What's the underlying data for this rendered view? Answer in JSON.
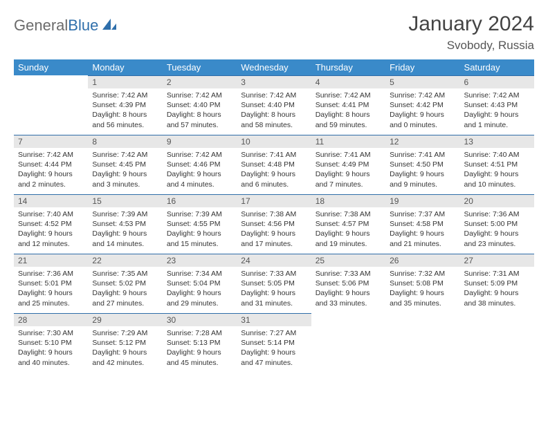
{
  "logo": {
    "word1": "General",
    "word2": "Blue"
  },
  "title": "January 2024",
  "location": "Svobody, Russia",
  "colors": {
    "header_bg": "#3a8ac9",
    "header_rule": "#2e6ca8",
    "daynum_bg": "#e7e7e7",
    "text": "#333333",
    "logo_gray": "#6b6b6b",
    "logo_blue": "#2f6fab"
  },
  "weekdays": [
    "Sunday",
    "Monday",
    "Tuesday",
    "Wednesday",
    "Thursday",
    "Friday",
    "Saturday"
  ],
  "start_offset": 1,
  "days": [
    {
      "n": 1,
      "sunrise": "7:42 AM",
      "sunset": "4:39 PM",
      "daylight": "8 hours and 56 minutes."
    },
    {
      "n": 2,
      "sunrise": "7:42 AM",
      "sunset": "4:40 PM",
      "daylight": "8 hours and 57 minutes."
    },
    {
      "n": 3,
      "sunrise": "7:42 AM",
      "sunset": "4:40 PM",
      "daylight": "8 hours and 58 minutes."
    },
    {
      "n": 4,
      "sunrise": "7:42 AM",
      "sunset": "4:41 PM",
      "daylight": "8 hours and 59 minutes."
    },
    {
      "n": 5,
      "sunrise": "7:42 AM",
      "sunset": "4:42 PM",
      "daylight": "9 hours and 0 minutes."
    },
    {
      "n": 6,
      "sunrise": "7:42 AM",
      "sunset": "4:43 PM",
      "daylight": "9 hours and 1 minute."
    },
    {
      "n": 7,
      "sunrise": "7:42 AM",
      "sunset": "4:44 PM",
      "daylight": "9 hours and 2 minutes."
    },
    {
      "n": 8,
      "sunrise": "7:42 AM",
      "sunset": "4:45 PM",
      "daylight": "9 hours and 3 minutes."
    },
    {
      "n": 9,
      "sunrise": "7:42 AM",
      "sunset": "4:46 PM",
      "daylight": "9 hours and 4 minutes."
    },
    {
      "n": 10,
      "sunrise": "7:41 AM",
      "sunset": "4:48 PM",
      "daylight": "9 hours and 6 minutes."
    },
    {
      "n": 11,
      "sunrise": "7:41 AM",
      "sunset": "4:49 PM",
      "daylight": "9 hours and 7 minutes."
    },
    {
      "n": 12,
      "sunrise": "7:41 AM",
      "sunset": "4:50 PM",
      "daylight": "9 hours and 9 minutes."
    },
    {
      "n": 13,
      "sunrise": "7:40 AM",
      "sunset": "4:51 PM",
      "daylight": "9 hours and 10 minutes."
    },
    {
      "n": 14,
      "sunrise": "7:40 AM",
      "sunset": "4:52 PM",
      "daylight": "9 hours and 12 minutes."
    },
    {
      "n": 15,
      "sunrise": "7:39 AM",
      "sunset": "4:53 PM",
      "daylight": "9 hours and 14 minutes."
    },
    {
      "n": 16,
      "sunrise": "7:39 AM",
      "sunset": "4:55 PM",
      "daylight": "9 hours and 15 minutes."
    },
    {
      "n": 17,
      "sunrise": "7:38 AM",
      "sunset": "4:56 PM",
      "daylight": "9 hours and 17 minutes."
    },
    {
      "n": 18,
      "sunrise": "7:38 AM",
      "sunset": "4:57 PM",
      "daylight": "9 hours and 19 minutes."
    },
    {
      "n": 19,
      "sunrise": "7:37 AM",
      "sunset": "4:58 PM",
      "daylight": "9 hours and 21 minutes."
    },
    {
      "n": 20,
      "sunrise": "7:36 AM",
      "sunset": "5:00 PM",
      "daylight": "9 hours and 23 minutes."
    },
    {
      "n": 21,
      "sunrise": "7:36 AM",
      "sunset": "5:01 PM",
      "daylight": "9 hours and 25 minutes."
    },
    {
      "n": 22,
      "sunrise": "7:35 AM",
      "sunset": "5:02 PM",
      "daylight": "9 hours and 27 minutes."
    },
    {
      "n": 23,
      "sunrise": "7:34 AM",
      "sunset": "5:04 PM",
      "daylight": "9 hours and 29 minutes."
    },
    {
      "n": 24,
      "sunrise": "7:33 AM",
      "sunset": "5:05 PM",
      "daylight": "9 hours and 31 minutes."
    },
    {
      "n": 25,
      "sunrise": "7:33 AM",
      "sunset": "5:06 PM",
      "daylight": "9 hours and 33 minutes."
    },
    {
      "n": 26,
      "sunrise": "7:32 AM",
      "sunset": "5:08 PM",
      "daylight": "9 hours and 35 minutes."
    },
    {
      "n": 27,
      "sunrise": "7:31 AM",
      "sunset": "5:09 PM",
      "daylight": "9 hours and 38 minutes."
    },
    {
      "n": 28,
      "sunrise": "7:30 AM",
      "sunset": "5:10 PM",
      "daylight": "9 hours and 40 minutes."
    },
    {
      "n": 29,
      "sunrise": "7:29 AM",
      "sunset": "5:12 PM",
      "daylight": "9 hours and 42 minutes."
    },
    {
      "n": 30,
      "sunrise": "7:28 AM",
      "sunset": "5:13 PM",
      "daylight": "9 hours and 45 minutes."
    },
    {
      "n": 31,
      "sunrise": "7:27 AM",
      "sunset": "5:14 PM",
      "daylight": "9 hours and 47 minutes."
    }
  ],
  "labels": {
    "sunrise": "Sunrise:",
    "sunset": "Sunset:",
    "daylight": "Daylight:"
  }
}
